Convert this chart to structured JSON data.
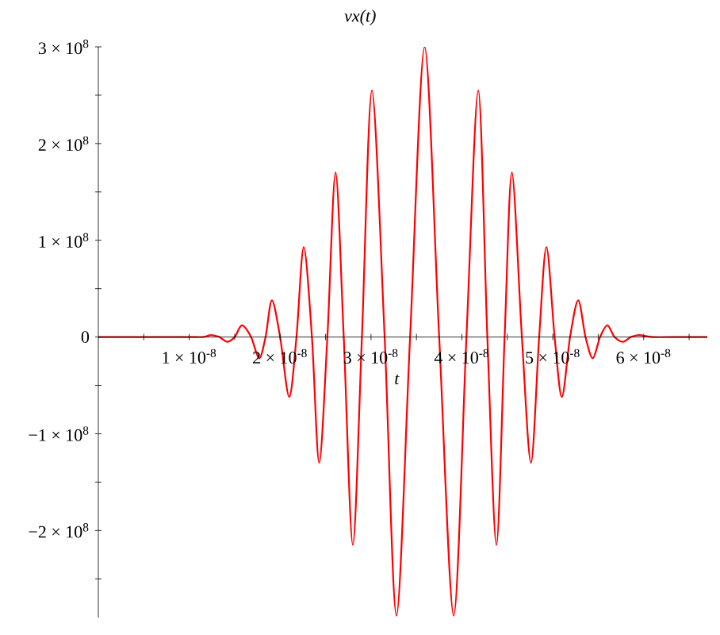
{
  "chart_data": {
    "type": "line",
    "title": "vx(t)",
    "xlabel": "t",
    "xlim": [
      0,
      6.7e-08
    ],
    "ylim": [
      -290000000.0,
      300000000.0
    ],
    "xticks": [
      {
        "value": 5e-09,
        "label": null
      },
      {
        "value": 1e-08,
        "label": "1 × 10$^{-8}$"
      },
      {
        "value": 1.5e-08,
        "label": null
      },
      {
        "value": 2e-08,
        "label": "2 × 10$^{-8}$"
      },
      {
        "value": 2.5e-08,
        "label": null
      },
      {
        "value": 3e-08,
        "label": "3 × 10$^{-8}$"
      },
      {
        "value": 3.5e-08,
        "label": null
      },
      {
        "value": 4e-08,
        "label": "4 × 10$^{-8}$"
      },
      {
        "value": 4.5e-08,
        "label": null
      },
      {
        "value": 5e-08,
        "label": "5 × 10$^{-8}$"
      },
      {
        "value": 5.5e-08,
        "label": null
      },
      {
        "value": 6e-08,
        "label": "6 × 10$^{-8}$"
      },
      {
        "value": 6.5e-08,
        "label": null
      }
    ],
    "yticks": [
      {
        "value": -250000000.0,
        "label": null
      },
      {
        "value": -200000000.0,
        "label": "−2 × 10$^{8}$"
      },
      {
        "value": -150000000.0,
        "label": null
      },
      {
        "value": -100000000.0,
        "label": "−1 × 10$^{8}$"
      },
      {
        "value": -50000000.0,
        "label": null
      },
      0,
      {
        "value": 50000000.0,
        "label": null
      },
      {
        "value": 100000000.0,
        "label": "1 × 10$^{8}$"
      },
      {
        "value": 150000000.0,
        "label": null
      },
      {
        "value": 200000000.0,
        "label": "2 × 10$^{8}$"
      },
      {
        "value": 250000000.0,
        "label": null
      },
      {
        "value": 300000000.0,
        "label": "3 × 10$^{8}$"
      }
    ],
    "grid": false,
    "marker": "none",
    "line_style": "solid",
    "series": [
      {
        "color": "#ff0000",
        "x": [
          0,
          5e-09,
          1e-08,
          1.15e-08,
          1.24e-08,
          1.33e-08,
          1.42e-08,
          1.5e-08,
          1.58e-08,
          1.68e-08,
          1.77e-08,
          1.84e-08,
          1.91e-08,
          2e-08,
          2.1e-08,
          2.18e-08,
          2.26e-08,
          2.35e-08,
          2.43e-08,
          2.52e-08,
          2.61e-08,
          2.7e-08,
          2.8e-08,
          2.9e-08,
          3.01e-08,
          3.15e-08,
          3.28e-08,
          3.43e-08,
          3.59e-08,
          3.75e-08,
          3.91e-08,
          4.05e-08,
          4.18e-08,
          4.28e-08,
          4.38e-08,
          4.47e-08,
          4.55e-08,
          4.66e-08,
          4.76e-08,
          4.85e-08,
          4.93e-08,
          5.02e-08,
          5.1e-08,
          5.19e-08,
          5.28e-08,
          5.36e-08,
          5.44e-08,
          5.52e-08,
          5.6e-08,
          5.68e-08,
          5.77e-08,
          5.86e-08,
          5.95e-08,
          6.1e-08,
          6.4e-08,
          6.7e-08
        ],
        "values": [
          0,
          0,
          0,
          0,
          2000000.0,
          0,
          -5000000.0,
          0,
          12000000.0,
          0,
          -22000000.0,
          0,
          38000000.0,
          0,
          -62000000.0,
          0,
          93000000.0,
          0,
          -130000000.0,
          0,
          170000000.0,
          0,
          -215000000.0,
          0,
          255000000.0,
          0,
          -288000000.0,
          0,
          300000000.0,
          0,
          -288000000.0,
          0,
          255000000.0,
          0,
          -215000000.0,
          0,
          170000000.0,
          0,
          -130000000.0,
          0,
          93000000.0,
          0,
          -62000000.0,
          0,
          38000000.0,
          0,
          -22000000.0,
          0,
          12000000.0,
          0,
          -5000000.0,
          0,
          2000000.0,
          0,
          0,
          0
        ]
      }
    ]
  }
}
